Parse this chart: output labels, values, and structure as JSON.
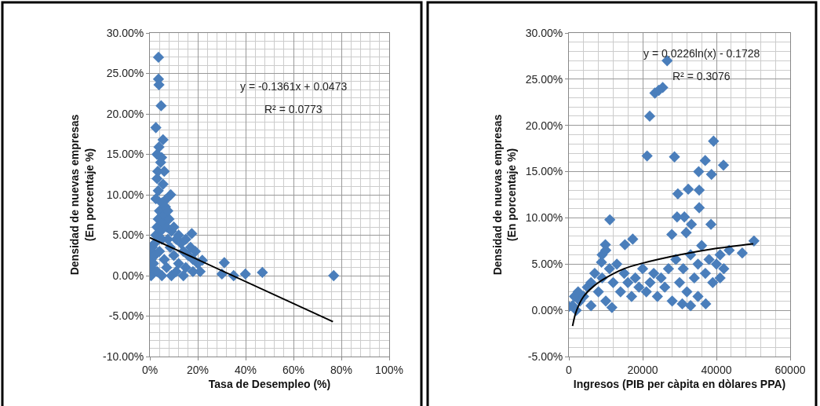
{
  "chart_data": [
    {
      "type": "scatter",
      "xlabel": "Tasa de Desempleo (%)",
      "ylabel": "Densidad de nuevas empresas (En porcentaje %)",
      "grid": true,
      "xlim": [
        0,
        1
      ],
      "xticks": [
        {
          "value": 0,
          "label": "0%"
        },
        {
          "value": 0.2,
          "label": "20%"
        },
        {
          "value": 0.4,
          "label": "40%"
        },
        {
          "value": 0.6,
          "label": "60%"
        },
        {
          "value": 0.8,
          "label": "80%"
        },
        {
          "value": 1,
          "label": "100%"
        }
      ],
      "ylim": [
        -0.1,
        0.3
      ],
      "yticks": [
        {
          "value": -0.1,
          "label": "-10.00%"
        },
        {
          "value": -0.05,
          "label": "-5.00%"
        },
        {
          "value": 0,
          "label": "0.00%"
        },
        {
          "value": 0.05,
          "label": "5.00%"
        },
        {
          "value": 0.1,
          "label": "10.00%"
        },
        {
          "value": 0.15,
          "label": "15.00%"
        },
        {
          "value": 0.2,
          "label": "20.00%"
        },
        {
          "value": 0.25,
          "label": "25.00%"
        },
        {
          "value": 0.3,
          "label": "30.00%"
        }
      ],
      "annotations": [
        "y = -0.1361x + 0.0473",
        "R² = 0.0773"
      ],
      "series": [
        {
          "type": "scatter",
          "marker": "diamond",
          "color": "#4a7ebb",
          "x": [
            0.036,
            0.036,
            0.038,
            0.047,
            0.025,
            0.055,
            0.038,
            0.049,
            0.033,
            0.06,
            0.055,
            0.087,
            0.066,
            0.175,
            0.219,
            0.311,
            0.301,
            0.35,
            0.399,
            0.47,
            0.768,
            0.005,
            0.005,
            0.005,
            0.005,
            0.01,
            0.015,
            0.02,
            0.02,
            0.025,
            0.03,
            0.03,
            0.035,
            0.04,
            0.04,
            0.045,
            0.05,
            0.05,
            0.055,
            0.06,
            0.06,
            0.065,
            0.07,
            0.07,
            0.075,
            0.08,
            0.085,
            0.09,
            0.09,
            0.1,
            0.1,
            0.11,
            0.11,
            0.12,
            0.12,
            0.13,
            0.14,
            0.14,
            0.15,
            0.15,
            0.16,
            0.17,
            0.18,
            0.18,
            0.19,
            0.2,
            0.21,
            0.025,
            0.035,
            0.05,
            0.075,
            0.03,
            0.045,
            0.03
          ],
          "values": [
            0.27,
            0.243,
            0.236,
            0.21,
            0.183,
            0.168,
            0.159,
            0.146,
            0.129,
            0.129,
            0.113,
            0.1,
            0.094,
            0.052,
            0.019,
            0.016,
            0.002,
            0.0,
            0.002,
            0.004,
            0.0,
            0.0,
            0.01,
            0.02,
            0.03,
            0.035,
            0.015,
            0.025,
            0.04,
            0.05,
            0.06,
            0.005,
            0.07,
            0.08,
            0.03,
            0.055,
            0.045,
            0.0,
            0.065,
            0.075,
            0.02,
            0.085,
            0.06,
            0.01,
            0.045,
            0.07,
            0.035,
            0.055,
            0.0,
            0.06,
            0.025,
            0.045,
            0.005,
            0.05,
            0.015,
            0.04,
            0.03,
            0.0,
            0.045,
            0.01,
            0.025,
            0.035,
            0.02,
            0.005,
            0.03,
            0.015,
            0.005,
            0.095,
            0.105,
            0.09,
            0.08,
            0.12,
            0.14,
            0.15
          ]
        },
        {
          "type": "line",
          "marker": "none",
          "line_style": "solid",
          "color": "#000000",
          "x": [
            0,
            0.765
          ],
          "values": [
            0.047,
            -0.057
          ]
        }
      ]
    },
    {
      "type": "scatter",
      "xlabel": "Ingresos (PIB per càpita en dòlares PPA)",
      "ylabel": "Densidad de nuevas empresas (En porcentaje %)",
      "grid": true,
      "xlim": [
        0,
        60000
      ],
      "xticks": [
        0,
        20000,
        40000,
        60000
      ],
      "ylim": [
        -0.05,
        0.3
      ],
      "yticks": [
        {
          "value": -0.05,
          "label": "-5.00%"
        },
        {
          "value": 0,
          "label": "0.00%"
        },
        {
          "value": 0.05,
          "label": "5.00%"
        },
        {
          "value": 0.1,
          "label": "10.00%"
        },
        {
          "value": 0.15,
          "label": "15.00%"
        },
        {
          "value": 0.2,
          "label": "20.00%"
        },
        {
          "value": 0.25,
          "label": "25.00%"
        },
        {
          "value": 0.3,
          "label": "30.00%"
        }
      ],
      "annotations": [
        "y = 0.0226ln(x) - 0.1728",
        "R² = 0.3076"
      ],
      "series": [
        {
          "type": "scatter",
          "marker": "diamond",
          "color": "#4a7ebb",
          "x": [
            26640,
            25440,
            23320,
            24380,
            21910,
            21200,
            28620,
            39220,
            41910,
            36960,
            35190,
            38660,
            32370,
            35330,
            29540,
            35330,
            29330,
            11100,
            31310,
            33220,
            38520,
            27910,
            31800,
            17310,
            15190,
            50180,
            47000,
            43460,
            40990,
            9890,
            8830,
            0,
            30740,
            37100,
            11660,
            1000,
            1500,
            2000,
            2500,
            3000,
            4000,
            5000,
            6000,
            6000,
            7000,
            8000,
            9000,
            9000,
            10000,
            10000,
            11000,
            12000,
            13000,
            14000,
            15000,
            16000,
            17000,
            18000,
            19000,
            20000,
            21000,
            22000,
            23000,
            24000,
            25000,
            26000,
            27000,
            28000,
            29000,
            30000,
            31000,
            32000,
            33000,
            33000,
            34000,
            35000,
            35000,
            36000,
            37000,
            38000,
            39000,
            40000,
            41000,
            42000
          ],
          "values": [
            0.27,
            0.241,
            0.235,
            0.238,
            0.21,
            0.167,
            0.166,
            0.183,
            0.157,
            0.162,
            0.15,
            0.147,
            0.131,
            0.13,
            0.126,
            0.111,
            0.101,
            0.098,
            0.101,
            0.093,
            0.093,
            0.082,
            0.084,
            0.077,
            0.071,
            0.075,
            0.062,
            0.065,
            0.035,
            0.071,
            0.052,
            0.004,
            0.007,
            0.007,
            0.003,
            0.005,
            0.015,
            0.0,
            0.02,
            0.01,
            0.015,
            0.025,
            0.03,
            0.005,
            0.04,
            0.02,
            0.06,
            0.035,
            0.065,
            0.01,
            0.045,
            0.03,
            0.05,
            0.02,
            0.04,
            0.03,
            0.015,
            0.035,
            0.025,
            0.045,
            0.02,
            0.03,
            0.04,
            0.015,
            0.035,
            0.025,
            0.045,
            0.01,
            0.055,
            0.03,
            0.045,
            0.02,
            0.06,
            0.005,
            0.035,
            0.05,
            0.015,
            0.07,
            0.04,
            0.055,
            0.03,
            0.05,
            0.06,
            0.045
          ]
        },
        {
          "type": "line",
          "marker": "none",
          "line_style": "solid",
          "color": "#000000",
          "x": [
            1000,
            2000,
            4000,
            7000,
            10000,
            15000,
            20000,
            30000,
            40000,
            50000
          ],
          "values": [
            -0.017,
            -0.001,
            0.015,
            0.027,
            0.035,
            0.045,
            0.051,
            0.06,
            0.067,
            0.072
          ]
        }
      ]
    }
  ]
}
